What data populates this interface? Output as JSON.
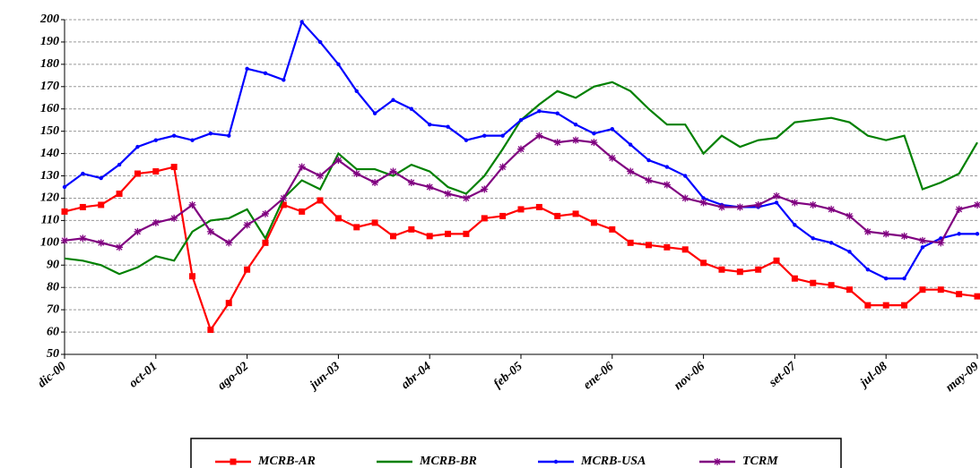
{
  "chart_data": {
    "type": "line",
    "categories": [
      "dic-00",
      null,
      null,
      null,
      null,
      "oct-01",
      null,
      null,
      null,
      null,
      "ago-02",
      null,
      null,
      null,
      null,
      "jun-03",
      null,
      null,
      null,
      null,
      "abr-04",
      null,
      null,
      null,
      null,
      "feb-05",
      null,
      null,
      null,
      null,
      "ene-06",
      null,
      null,
      null,
      null,
      "nov-06",
      null,
      null,
      null,
      null,
      "set-07",
      null,
      null,
      null,
      null,
      "jul-08",
      null,
      null,
      null,
      null,
      "may-09"
    ],
    "series": [
      {
        "name": "MCRB-AR",
        "color": "#ff0000",
        "marker": "square",
        "values": [
          114,
          116,
          117,
          122,
          131,
          132,
          134,
          85,
          61,
          73,
          88,
          100,
          117,
          114,
          119,
          111,
          107,
          109,
          103,
          106,
          103,
          104,
          104,
          111,
          112,
          115,
          116,
          112,
          113,
          109,
          106,
          100,
          99,
          98,
          97,
          91,
          88,
          87,
          88,
          92,
          84,
          82,
          81,
          79,
          72,
          72,
          72,
          79,
          79,
          77,
          76
        ]
      },
      {
        "name": "MCRB-BR",
        "color": "#008000",
        "marker": "none",
        "values": [
          93,
          92,
          90,
          86,
          89,
          94,
          92,
          105,
          110,
          111,
          115,
          102,
          120,
          128,
          124,
          140,
          133,
          133,
          130,
          135,
          132,
          125,
          122,
          130,
          142,
          155,
          162,
          168,
          165,
          170,
          172,
          168,
          160,
          153,
          153,
          140,
          148,
          143,
          146,
          147,
          154,
          155,
          156,
          154,
          148,
          146,
          148,
          124,
          127,
          131,
          145
        ]
      },
      {
        "name": "MCRB-USA",
        "color": "#0000ff",
        "marker": "dot",
        "values": [
          125,
          131,
          129,
          135,
          143,
          146,
          148,
          146,
          149,
          148,
          178,
          176,
          173,
          199,
          190,
          180,
          168,
          158,
          164,
          160,
          153,
          152,
          146,
          148,
          148,
          155,
          159,
          158,
          153,
          149,
          151,
          144,
          137,
          134,
          130,
          120,
          117,
          116,
          116,
          118,
          108,
          102,
          100,
          96,
          88,
          84,
          84,
          98,
          102,
          104,
          104
        ]
      },
      {
        "name": "TCRM",
        "color": "#800080",
        "marker": "star",
        "values": [
          101,
          102,
          100,
          98,
          105,
          109,
          111,
          117,
          105,
          100,
          108,
          113,
          120,
          134,
          130,
          137,
          131,
          127,
          132,
          127,
          125,
          122,
          120,
          124,
          134,
          142,
          148,
          145,
          146,
          145,
          138,
          132,
          128,
          126,
          120,
          118,
          116,
          116,
          117,
          121,
          118,
          117,
          115,
          112,
          105,
          104,
          103,
          101,
          100,
          115,
          117
        ]
      }
    ],
    "ylim": [
      50,
      200
    ],
    "yticks": [
      50,
      60,
      70,
      80,
      90,
      100,
      110,
      120,
      130,
      140,
      150,
      160,
      170,
      180,
      190,
      200
    ],
    "grid": true,
    "legend": "bottom"
  }
}
